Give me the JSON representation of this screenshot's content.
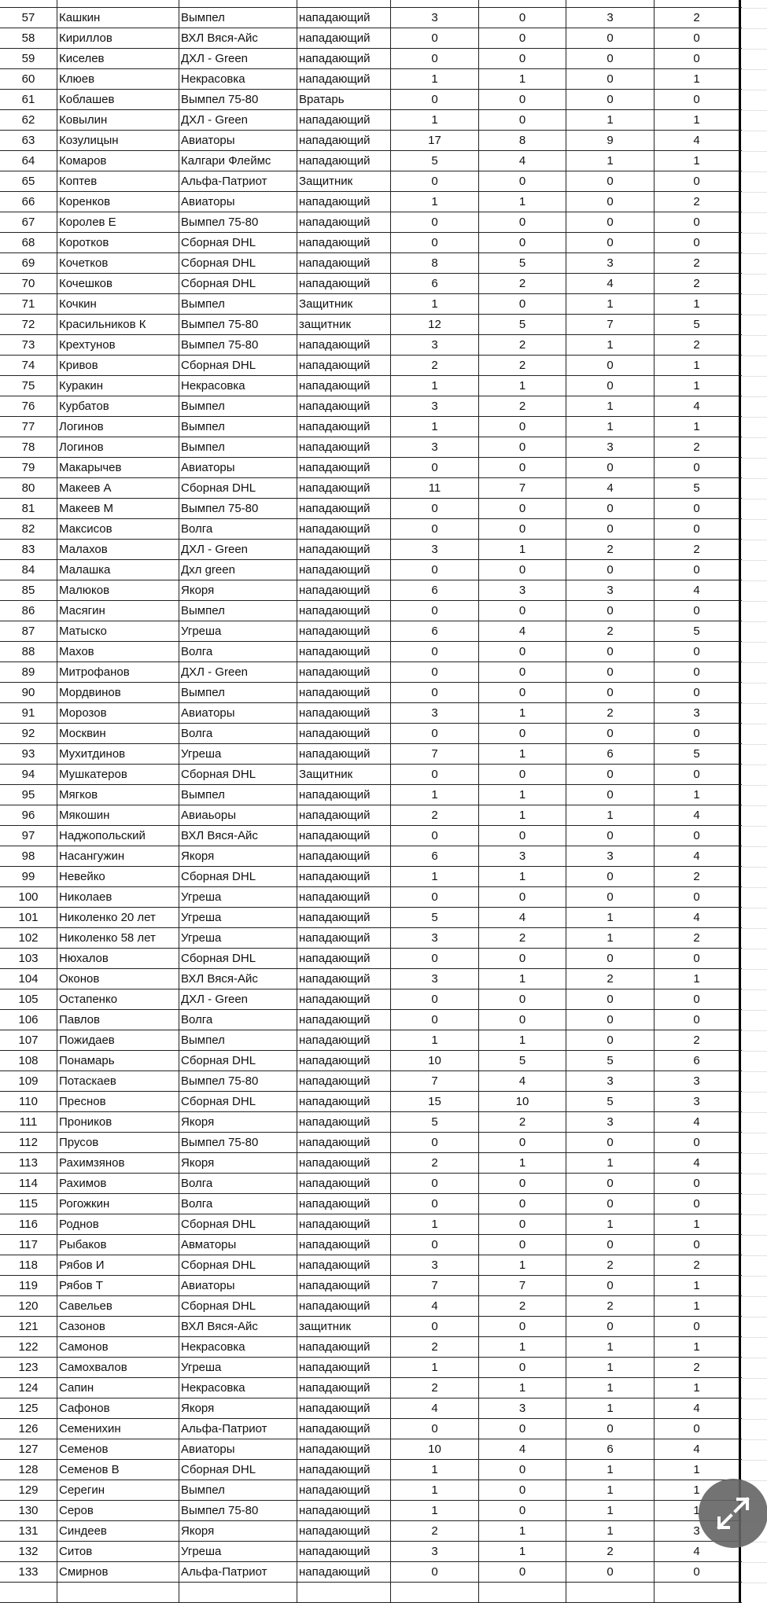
{
  "columns": [
    "row_number",
    "name",
    "team",
    "position",
    "c1",
    "c2",
    "c3",
    "c4"
  ],
  "rows": [
    [
      "57",
      "Кашкин",
      "Вымпел",
      "нападающий",
      "3",
      "0",
      "3",
      "2"
    ],
    [
      "58",
      "Кириллов",
      "ВХЛ Вяся-Айс",
      "нападающий",
      "0",
      "0",
      "0",
      "0"
    ],
    [
      "59",
      "Киселев",
      "ДХЛ - Green",
      "нападающий",
      "0",
      "0",
      "0",
      "0"
    ],
    [
      "60",
      "Клюев",
      "Некрасовка",
      "нападающий",
      "1",
      "1",
      "0",
      "1"
    ],
    [
      "61",
      "Коблашев",
      "Вымпел 75-80",
      "Вратарь",
      "0",
      "0",
      "0",
      "0"
    ],
    [
      "62",
      "Ковылин",
      "ДХЛ -  Green",
      "нападающий",
      "1",
      "0",
      "1",
      "1"
    ],
    [
      "63",
      "Козулицын",
      "Авиаторы",
      "нападающий",
      "17",
      "8",
      "9",
      "4"
    ],
    [
      "64",
      "Комаров",
      "Калгари Флеймс",
      "нападающий",
      "5",
      "4",
      "1",
      "1"
    ],
    [
      "65",
      "Коптев",
      "Альфа-Патриот",
      "Защитник",
      "0",
      "0",
      "0",
      "0"
    ],
    [
      "66",
      "Коренков",
      "Авиаторы",
      "нападающий",
      "1",
      "1",
      "0",
      "2"
    ],
    [
      "67",
      "Королев Е",
      "Вымпел 75-80",
      "нападающий",
      "0",
      "0",
      "0",
      "0"
    ],
    [
      "68",
      "Коротков",
      "Сборная DHL",
      "нападающий",
      "0",
      "0",
      "0",
      "0"
    ],
    [
      "69",
      "Кочетков",
      "Сборная DHL",
      "нападающий",
      "8",
      "5",
      "3",
      "2"
    ],
    [
      "70",
      "Кочешков",
      "Сборная DHL",
      "нападающий",
      "6",
      "2",
      "4",
      "2"
    ],
    [
      "71",
      "Кочкин",
      "Вымпел",
      "Защитник",
      "1",
      "0",
      "1",
      "1"
    ],
    [
      "72",
      "Красильников К",
      "Вымпел 75-80",
      "защитник",
      "12",
      "5",
      "7",
      "5"
    ],
    [
      "73",
      "Крехтунов",
      "Вымпел 75-80",
      "нападающий",
      "3",
      "2",
      "1",
      "2"
    ],
    [
      "74",
      "Кривов",
      "Сборная DHL",
      "нападающий",
      "2",
      "2",
      "0",
      "1"
    ],
    [
      "75",
      "Куракин",
      "Некрасовка",
      "нападающий",
      "1",
      "1",
      "0",
      "1"
    ],
    [
      "76",
      "Курбатов",
      "Вымпел",
      "нападающий",
      "3",
      "2",
      "1",
      "4"
    ],
    [
      "77",
      "Логинов",
      "Вымпел",
      "нападающий",
      "1",
      "0",
      "1",
      "1"
    ],
    [
      "78",
      "Логинов",
      "Вымпел",
      "нападающий",
      "3",
      "0",
      "3",
      "2"
    ],
    [
      "79",
      "Макарычев",
      "Авиаторы",
      "нападающий",
      "0",
      "0",
      "0",
      "0"
    ],
    [
      "80",
      "Макеев А",
      "Сборная DHL",
      "нападающий",
      "11",
      "7",
      "4",
      "5"
    ],
    [
      "81",
      "Макеев М",
      "Вымпел 75-80",
      "нападающий",
      "0",
      "0",
      "0",
      "0"
    ],
    [
      "82",
      "Максисов",
      "Волга",
      "нападающий",
      "0",
      "0",
      "0",
      "0"
    ],
    [
      "83",
      "Малахов",
      "ДХЛ -  Green",
      "нападающий",
      "3",
      "1",
      "2",
      "2"
    ],
    [
      "84",
      "Малашка",
      "Дхл green",
      "нападающий",
      "0",
      "0",
      "0",
      "0"
    ],
    [
      "85",
      "Малюков",
      "Якоря",
      "нападающий",
      "6",
      "3",
      "3",
      "4"
    ],
    [
      "86",
      "Масягин",
      "Вымпел",
      "нападающий",
      "0",
      "0",
      "0",
      "0"
    ],
    [
      "87",
      "Матыско",
      "Угреша",
      "нападающий",
      "6",
      "4",
      "2",
      "5"
    ],
    [
      "88",
      "Махов",
      "Волга",
      "нападающий",
      "0",
      "0",
      "0",
      "0"
    ],
    [
      "89",
      "Митрофанов",
      "ДХЛ -  Green",
      "нападающий",
      "0",
      "0",
      "0",
      "0"
    ],
    [
      "90",
      "Мордвинов",
      "Вымпел",
      "нападающий",
      "0",
      "0",
      "0",
      "0"
    ],
    [
      "91",
      "Морозов",
      "Авиаторы",
      "нападающий",
      "3",
      "1",
      "2",
      "3"
    ],
    [
      "92",
      "Москвин",
      "Волга",
      "нападающий",
      "0",
      "0",
      "0",
      "0"
    ],
    [
      "93",
      "Мухитдинов",
      "Угреша",
      "нападающий",
      "7",
      "1",
      "6",
      "5"
    ],
    [
      "94",
      "Мушкатеров",
      "Сборная DHL",
      "Защитник",
      "0",
      "0",
      "0",
      "0"
    ],
    [
      "95",
      "Мягков",
      "Вымпел",
      "нападающий",
      "1",
      "1",
      "0",
      "1"
    ],
    [
      "96",
      "Мякошин",
      "Авиаьоры",
      "нападающий",
      "2",
      "1",
      "1",
      "4"
    ],
    [
      "97",
      "Наджопольский",
      "ВХЛ Вяся-Айс",
      "нападающий",
      "0",
      "0",
      "0",
      "0"
    ],
    [
      "98",
      "Насангужин",
      "Якоря",
      "нападающий",
      "6",
      "3",
      "3",
      "4"
    ],
    [
      "99",
      "Невейко",
      "Сборная DHL",
      "нападающий",
      "1",
      "1",
      "0",
      "2"
    ],
    [
      "100",
      "Николаев",
      "Угреша",
      "нападающий",
      "0",
      "0",
      "0",
      "0"
    ],
    [
      "101",
      "Николенко 20 лет",
      "Угреша",
      "нападающий",
      "5",
      "4",
      "1",
      "4"
    ],
    [
      "102",
      "Николенко 58 лет",
      "Угреша",
      "нападающий",
      "3",
      "2",
      "1",
      "2"
    ],
    [
      "103",
      "Нюхалов",
      "Сборная DHL",
      "нападающий",
      "0",
      "0",
      "0",
      "0"
    ],
    [
      "104",
      "Оконов",
      "ВХЛ Вяся-Айс",
      "нападающий",
      "3",
      "1",
      "2",
      "1"
    ],
    [
      "105",
      "Остапенко",
      "ДХЛ -  Green",
      "нападающий",
      "0",
      "0",
      "0",
      "0"
    ],
    [
      "106",
      "Павлов",
      "Волга",
      "нападающий",
      "0",
      "0",
      "0",
      "0"
    ],
    [
      "107",
      "Пожидаев",
      "Вымпел",
      "нападающий",
      "1",
      "1",
      "0",
      "2"
    ],
    [
      "108",
      "Понамарь",
      "Сборная DHL",
      "нападающий",
      "10",
      "5",
      "5",
      "6"
    ],
    [
      "109",
      "Потаскаев",
      "Вымпел 75-80",
      "нападающий",
      "7",
      "4",
      "3",
      "3"
    ],
    [
      "110",
      "Преснов",
      "Сборная DHL",
      "нападающий",
      "15",
      "10",
      "5",
      "3"
    ],
    [
      "111",
      "Проников",
      "Якоря",
      "нападающий",
      "5",
      "2",
      "3",
      "4"
    ],
    [
      "112",
      "Прусов",
      "Вымпел 75-80",
      "нападающий",
      "0",
      "0",
      "0",
      "0"
    ],
    [
      "113",
      "Рахимзянов",
      "Якоря",
      "нападающий",
      "2",
      "1",
      "1",
      "4"
    ],
    [
      "114",
      "Рахимов",
      "Волга",
      "нападающий",
      "0",
      "0",
      "0",
      "0"
    ],
    [
      "115",
      "Рогожкин",
      "Волга",
      "нападающий",
      "0",
      "0",
      "0",
      "0"
    ],
    [
      "116",
      "Роднов",
      "Сборная DHL",
      "нападающий",
      "1",
      "0",
      "1",
      "1"
    ],
    [
      "117",
      "Рыбаков",
      "Авматоры",
      "нападающий",
      "0",
      "0",
      "0",
      "0"
    ],
    [
      "118",
      "Рябов И",
      "Сборная DHL",
      "нападающий",
      "3",
      "1",
      "2",
      "2"
    ],
    [
      "119",
      "Рябов Т",
      "Авиаторы",
      "нападающий",
      "7",
      "7",
      "0",
      "1"
    ],
    [
      "120",
      "Савельев",
      "Сборная DHL",
      "нападающий",
      "4",
      "2",
      "2",
      "1"
    ],
    [
      "121",
      "Сазонов",
      "ВХЛ Вяся-Айс",
      "защитник",
      "0",
      "0",
      "0",
      "0"
    ],
    [
      "122",
      "Самонов",
      "Некрасовка",
      "нападающий",
      "2",
      "1",
      "1",
      "1"
    ],
    [
      "123",
      "Самохвалов",
      "Угреша",
      "нападающий",
      "1",
      "0",
      "1",
      "2"
    ],
    [
      "124",
      "Сапин",
      "Некрасовка",
      "нападающий",
      "2",
      "1",
      "1",
      "1"
    ],
    [
      "125",
      "Сафонов",
      "Якоря",
      "нападающий",
      "4",
      "3",
      "1",
      "4"
    ],
    [
      "126",
      "Семенихин",
      "Альфа-Патриот",
      "нападающий",
      "0",
      "0",
      "0",
      "0"
    ],
    [
      "127",
      "Семенов",
      "Авиаторы",
      "нападающий",
      "10",
      "4",
      "6",
      "4"
    ],
    [
      "128",
      "Семенов В",
      "Сборная DHL",
      "нападающий",
      "1",
      "0",
      "1",
      "1"
    ],
    [
      "129",
      "Серегин",
      "Вымпел",
      "нападающий",
      "1",
      "0",
      "1",
      "1"
    ],
    [
      "130",
      "Серов",
      "Вымпел 75-80",
      "нападающий",
      "1",
      "0",
      "1",
      "1"
    ],
    [
      "131",
      "Синдеев",
      "Якоря",
      "нападающий",
      "2",
      "1",
      "1",
      "3"
    ],
    [
      "132",
      "Ситов",
      "Угреша",
      "нападающий",
      "3",
      "1",
      "2",
      "4"
    ],
    [
      "133",
      "Смирнов",
      "Альфа-Патриот",
      "нападающий",
      "0",
      "0",
      "0",
      "0"
    ]
  ],
  "fab": {
    "icon": "fullscreen-expand-icon",
    "color": "#646464"
  }
}
